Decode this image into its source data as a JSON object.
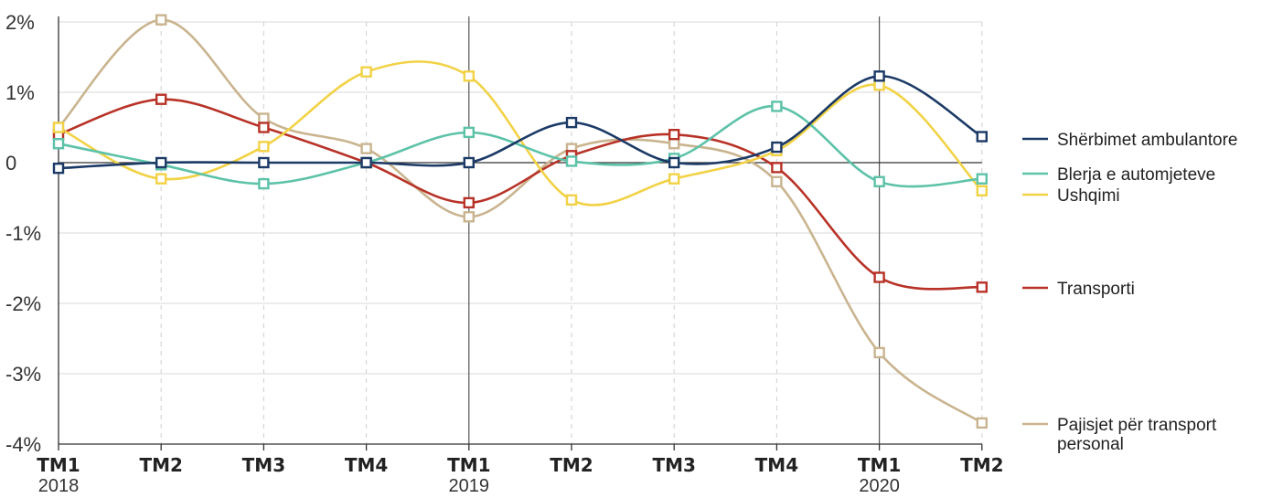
{
  "chart_data": {
    "type": "line",
    "title": "",
    "xlabel": "",
    "ylabel": "",
    "categories": [
      "TM1",
      "TM2",
      "TM3",
      "TM4",
      "TM1",
      "TM2",
      "TM3",
      "TM4",
      "TM1",
      "TM2"
    ],
    "year_labels": [
      "2018",
      "",
      "",
      "",
      "2019",
      "",
      "",
      "",
      "2020",
      ""
    ],
    "y_ticks": [
      {
        "value": 2,
        "label": "2%"
      },
      {
        "value": 1,
        "label": "1%"
      },
      {
        "value": 0,
        "label": "0"
      },
      {
        "value": -1,
        "label": "-1%"
      },
      {
        "value": -2,
        "label": "-2%"
      },
      {
        "value": -3,
        "label": "-3%"
      },
      {
        "value": -4,
        "label": "-4%"
      }
    ],
    "ylim": [
      -4,
      2
    ],
    "grid": true,
    "legend_placement": "right",
    "series": [
      {
        "name": "Shërbimet ambulantore",
        "legend_lines": [
          "Shërbimet ambulantore"
        ],
        "color": "#1b3a66",
        "values": [
          -0.08,
          0.0,
          0.0,
          0.0,
          0.0,
          0.57,
          0.0,
          0.22,
          1.23,
          0.37
        ]
      },
      {
        "name": "Blerja e automjeteve",
        "legend_lines": [
          "Blerja e automjeteve"
        ],
        "color": "#5cc2a8",
        "values": [
          0.27,
          -0.03,
          -0.3,
          0.0,
          0.43,
          0.02,
          0.06,
          0.8,
          -0.27,
          -0.23
        ]
      },
      {
        "name": "Ushqimi",
        "legend_lines": [
          "Ushqimi"
        ],
        "color": "#f2d245",
        "values": [
          0.5,
          -0.23,
          0.23,
          1.29,
          1.23,
          -0.53,
          -0.23,
          0.17,
          1.1,
          -0.4
        ]
      },
      {
        "name": "Transporti",
        "legend_lines": [
          "Transporti"
        ],
        "color": "#b83227",
        "values": [
          0.4,
          0.9,
          0.5,
          0.0,
          -0.57,
          0.1,
          0.4,
          -0.07,
          -1.63,
          -1.77
        ]
      },
      {
        "name": "Pajisjet për transport personal",
        "legend_lines": [
          "Pajisjet për transport",
          "personal"
        ],
        "color": "#c9b48f",
        "values": [
          0.5,
          2.03,
          0.63,
          0.2,
          -0.77,
          0.2,
          0.27,
          -0.27,
          -2.7,
          -3.7
        ]
      }
    ]
  }
}
